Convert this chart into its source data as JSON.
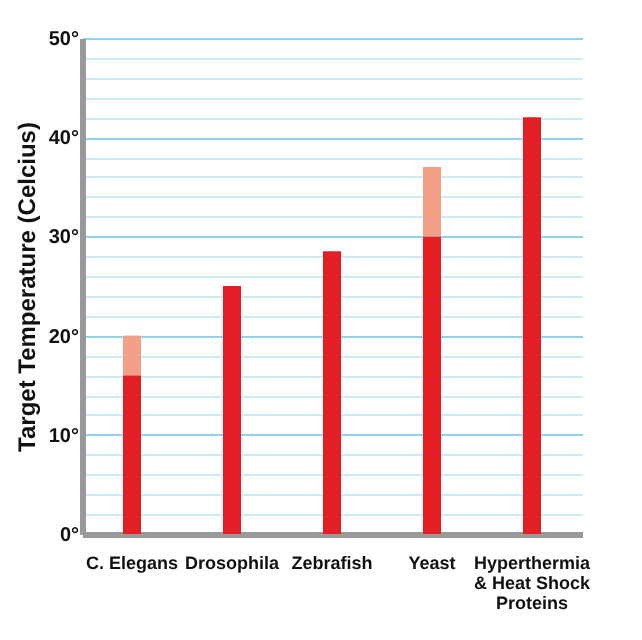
{
  "chart_data": {
    "type": "bar",
    "ylabel": "Target Temperature (Celcius)",
    "categories": [
      "C. Elegans",
      "Drosophila",
      "Zebrafish",
      "Yeast",
      "Hyperthermia & Heat Shock Proteins"
    ],
    "stacked": true,
    "series": [
      {
        "color": "#e31e24",
        "values": [
          16,
          25,
          28.5,
          30,
          42
        ]
      },
      {
        "color": "#f2a088",
        "values": [
          4,
          null,
          null,
          7,
          null
        ]
      }
    ],
    "ylim": [
      0,
      50
    ],
    "yticks": [
      {
        "value": 0,
        "label": "0°"
      },
      {
        "value": 2,
        "label": null
      },
      {
        "value": 4,
        "label": null
      },
      {
        "value": 6,
        "label": null
      },
      {
        "value": 8,
        "label": null
      },
      {
        "value": 10,
        "label": "10°"
      },
      {
        "value": 12,
        "label": null
      },
      {
        "value": 14,
        "label": null
      },
      {
        "value": 16,
        "label": null
      },
      {
        "value": 18,
        "label": null
      },
      {
        "value": 20,
        "label": "20°"
      },
      {
        "value": 22,
        "label": null
      },
      {
        "value": 24,
        "label": null
      },
      {
        "value": 26,
        "label": null
      },
      {
        "value": 28,
        "label": null
      },
      {
        "value": 30,
        "label": "30°"
      },
      {
        "value": 32,
        "label": null
      },
      {
        "value": 34,
        "label": null
      },
      {
        "value": 36,
        "label": null
      },
      {
        "value": 38,
        "label": null
      },
      {
        "value": 40,
        "label": "40°"
      },
      {
        "value": 42,
        "label": null
      },
      {
        "value": 44,
        "label": null
      },
      {
        "value": 46,
        "label": null
      },
      {
        "value": 48,
        "label": null
      },
      {
        "value": 50,
        "label": "50°"
      }
    ],
    "grid": "y",
    "legend": false
  }
}
